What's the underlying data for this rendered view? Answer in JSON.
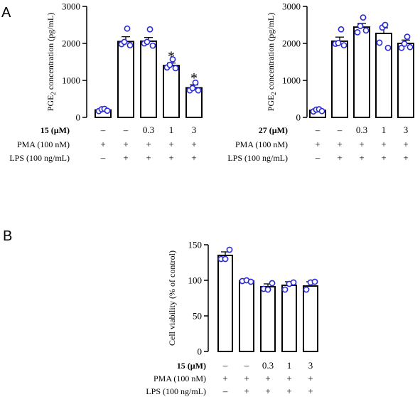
{
  "panels": {
    "A": "A",
    "B": "B"
  },
  "row_labels": {
    "treat15_num": "15",
    "treat27_num": "27",
    "unit": " (µM)",
    "pma": "PMA (100 nM)",
    "lps": "LPS (100 ng/mL)"
  },
  "chart_data": [
    {
      "id": "A1",
      "type": "bar",
      "ylabel": "PGE2 concentration (pg/mL)",
      "ylabel_parts": [
        "PGE",
        "2",
        " concentration (pg/mL)"
      ],
      "ylim": [
        0,
        3000
      ],
      "yticks": [
        "0",
        "1000",
        "2000",
        "3000"
      ],
      "values": [
        200,
        2050,
        2060,
        1400,
        800
      ],
      "errors": [
        20,
        130,
        100,
        70,
        80
      ],
      "points": [
        [
          170,
          220,
          230,
          180
        ],
        [
          1980,
          2040,
          2400,
          1950
        ],
        [
          2000,
          2040,
          2380,
          1940
        ],
        [
          1350,
          1420,
          1570,
          1330
        ],
        [
          730,
          790,
          940,
          730
        ]
      ],
      "significance": [
        "",
        "",
        "",
        "*",
        "*"
      ],
      "conditions": {
        "compound": [
          "–",
          "–",
          "0.3",
          "1",
          "3"
        ],
        "pma": [
          "+",
          "+",
          "+",
          "+",
          "+"
        ],
        "lps": [
          "–",
          "+",
          "+",
          "+",
          "+"
        ]
      }
    },
    {
      "id": "A2",
      "type": "bar",
      "ylabel": "PGE2 concentration (pg/mL)",
      "ylabel_parts": [
        "PGE",
        "2",
        " concentration (pg/mL)"
      ],
      "ylim": [
        0,
        3000
      ],
      "yticks": [
        "0",
        "1000",
        "2000",
        "3000"
      ],
      "values": [
        190,
        2060,
        2440,
        2270,
        2000
      ],
      "errors": [
        20,
        110,
        100,
        150,
        90
      ],
      "points": [
        [
          160,
          210,
          220,
          170
        ],
        [
          1990,
          2010,
          2380,
          1950
        ],
        [
          2300,
          2470,
          2700,
          2350
        ],
        [
          2020,
          2430,
          2500,
          1880
        ],
        [
          1880,
          1990,
          2180,
          1900
        ]
      ],
      "significance": [
        "",
        "",
        "",
        "",
        ""
      ],
      "conditions": {
        "compound": [
          "–",
          "–",
          "0.3",
          "1",
          "3"
        ],
        "pma": [
          "+",
          "+",
          "+",
          "+",
          "+"
        ],
        "lps": [
          "–",
          "+",
          "+",
          "+",
          "+"
        ]
      }
    },
    {
      "id": "B",
      "type": "bar",
      "ylabel": "Cell viability (% of control)",
      "ylim": [
        0,
        150
      ],
      "yticks": [
        "0",
        "50",
        "100",
        "150"
      ],
      "values": [
        135,
        99,
        91,
        93,
        92
      ],
      "errors": [
        5,
        1,
        4,
        5,
        6
      ],
      "points": [
        [
          130,
          130,
          143
        ],
        [
          99,
          100,
          98
        ],
        [
          88,
          87,
          96
        ],
        [
          87,
          95,
          97
        ],
        [
          87,
          97,
          98
        ]
      ],
      "significance": [
        "",
        "",
        "",
        "",
        ""
      ],
      "conditions": {
        "compound": [
          "–",
          "–",
          "0.3",
          "1",
          "3"
        ],
        "pma": [
          "+",
          "+",
          "+",
          "+",
          "+"
        ],
        "lps": [
          "–",
          "+",
          "+",
          "+",
          "+"
        ]
      }
    }
  ]
}
